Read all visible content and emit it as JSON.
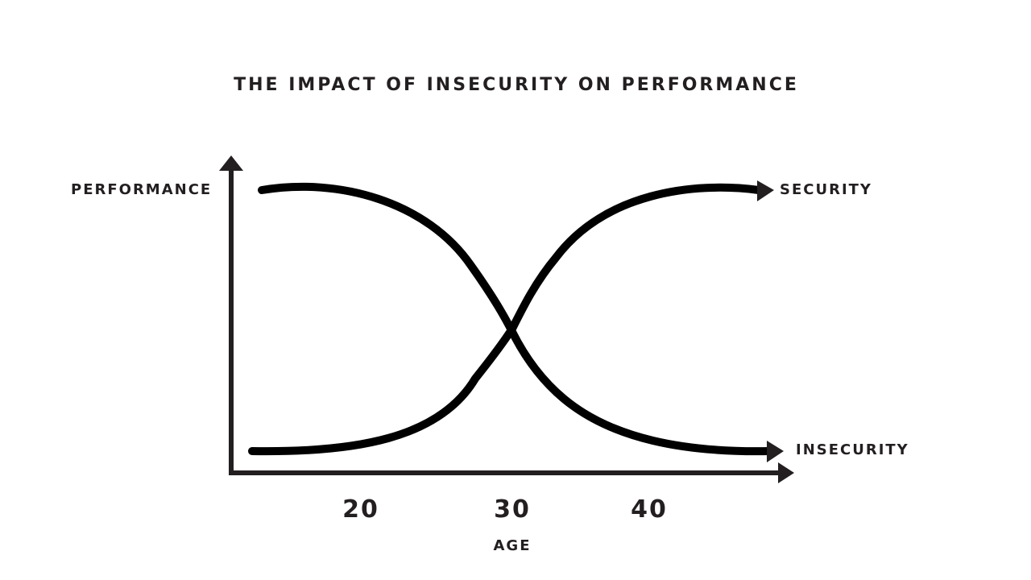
{
  "title": "THE IMPACT OF INSECURITY ON PERFORMANCE",
  "y_axis_label": "PERFORMANCE",
  "x_axis_label": "AGE",
  "curves": [
    {
      "label": "SECURITY",
      "trend": "rising"
    },
    {
      "label": "INSECURITY",
      "trend": "falling"
    }
  ],
  "x_ticks": [
    "20",
    "30",
    "40"
  ],
  "colors": {
    "ink": "#231f20",
    "curve": "#000000",
    "background": "#ffffff"
  }
}
